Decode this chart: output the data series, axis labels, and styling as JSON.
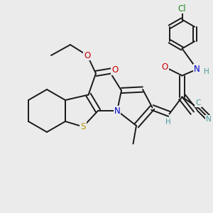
{
  "bg_color": "#ebebeb",
  "bond_color": "#1a1a1a",
  "bond_width": 1.4,
  "atom_colors": {
    "S": "#b8960c",
    "N": "#0000cc",
    "O": "#cc0000",
    "Cl": "#228B22",
    "CN": "#4a9a9a",
    "H": "#4a9a9a"
  },
  "font_size_atom": 8.5,
  "font_size_small": 7.5
}
